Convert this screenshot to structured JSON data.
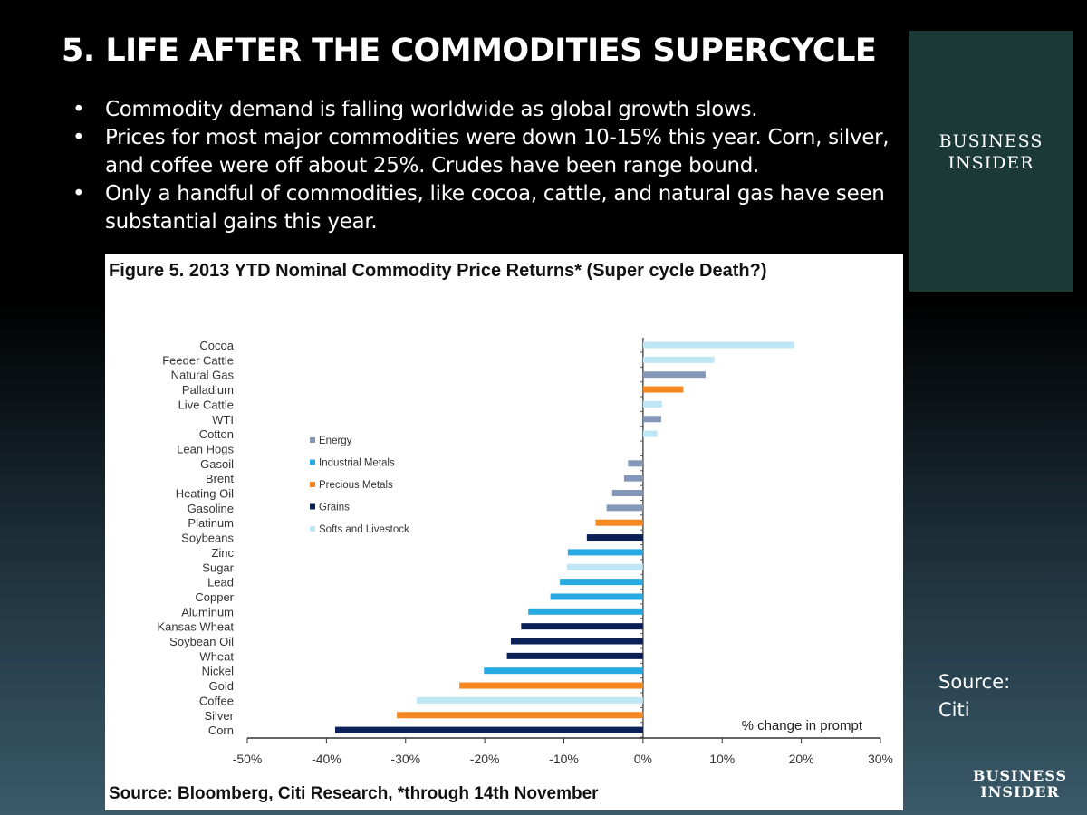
{
  "slide": {
    "title": "5.  LIFE AFTER THE COMMODITIES SUPERCYCLE",
    "bullets": [
      "Commodity demand is falling worldwide as global growth slows.",
      "Prices for most major commodities were down 10-15% this year. Corn, silver, and coffee were off about 25%. Crudes have been range bound.",
      "Only a handful of commodities, like cocoa, cattle, and natural gas have seen substantial gains this year."
    ],
    "logo": "Business Insider",
    "source_label": "Source:",
    "source_value": "Citi",
    "brand_color": "#1b3a37"
  },
  "chart_data": {
    "type": "bar",
    "orientation": "horizontal",
    "title": "Figure 5. 2013 YTD Nominal Commodity Price Returns* (Super cycle Death?)",
    "footnote": "Source: Bloomberg, Citi Research, *through 14th November",
    "xlabel": "% change in prompt",
    "xlim": [
      -50,
      30
    ],
    "xticks": [
      "-50%",
      "-40%",
      "-30%",
      "-20%",
      "-10%",
      "0%",
      "10%",
      "20%",
      "30%"
    ],
    "grid": false,
    "legend_placement": "center-left",
    "legend": [
      {
        "name": "Energy",
        "color": "#8497b8"
      },
      {
        "name": "Industrial Metals",
        "color": "#27a9e1"
      },
      {
        "name": "Precious Metals",
        "color": "#f5891f"
      },
      {
        "name": "Grains",
        "color": "#0c2157"
      },
      {
        "name": "Softs and Livestock",
        "color": "#bfe6f5"
      }
    ],
    "bars": [
      {
        "name": "Cocoa",
        "value": 19.1,
        "group": "Softs and Livestock"
      },
      {
        "name": "Feeder Cattle",
        "value": 9.0,
        "group": "Softs and Livestock"
      },
      {
        "name": "Natural Gas",
        "value": 7.9,
        "group": "Energy"
      },
      {
        "name": "Palladium",
        "value": 5.1,
        "group": "Precious Metals"
      },
      {
        "name": "Live Cattle",
        "value": 2.4,
        "group": "Softs and Livestock"
      },
      {
        "name": "WTI",
        "value": 2.3,
        "group": "Energy"
      },
      {
        "name": "Cotton",
        "value": 1.8,
        "group": "Softs and Livestock"
      },
      {
        "name": "Lean Hogs",
        "value": 0,
        "group": "Softs and Livestock"
      },
      {
        "name": "Gasoil",
        "value": -1.9,
        "group": "Energy"
      },
      {
        "name": "Brent",
        "value": -2.4,
        "group": "Energy"
      },
      {
        "name": "Heating Oil",
        "value": -3.9,
        "group": "Energy"
      },
      {
        "name": "Gasoline",
        "value": -4.6,
        "group": "Energy"
      },
      {
        "name": "Platinum",
        "value": -6.0,
        "group": "Precious Metals"
      },
      {
        "name": "Soybeans",
        "value": -7.1,
        "group": "Grains"
      },
      {
        "name": "Zinc",
        "value": -9.5,
        "group": "Industrial Metals"
      },
      {
        "name": "Sugar",
        "value": -9.6,
        "group": "Softs and Livestock"
      },
      {
        "name": "Lead",
        "value": -10.5,
        "group": "Industrial Metals"
      },
      {
        "name": "Copper",
        "value": -11.7,
        "group": "Industrial Metals"
      },
      {
        "name": "Aluminum",
        "value": -14.5,
        "group": "Industrial Metals"
      },
      {
        "name": "Kansas Wheat",
        "value": -15.4,
        "group": "Grains"
      },
      {
        "name": "Soybean Oil",
        "value": -16.7,
        "group": "Grains"
      },
      {
        "name": "Wheat",
        "value": -17.2,
        "group": "Grains"
      },
      {
        "name": "Nickel",
        "value": -20.1,
        "group": "Industrial Metals"
      },
      {
        "name": "Gold",
        "value": -23.2,
        "group": "Precious Metals"
      },
      {
        "name": "Coffee",
        "value": -28.6,
        "group": "Softs and Livestock"
      },
      {
        "name": "Silver",
        "value": -31.1,
        "group": "Precious Metals"
      },
      {
        "name": "Corn",
        "value": -38.9,
        "group": "Grains"
      }
    ]
  }
}
